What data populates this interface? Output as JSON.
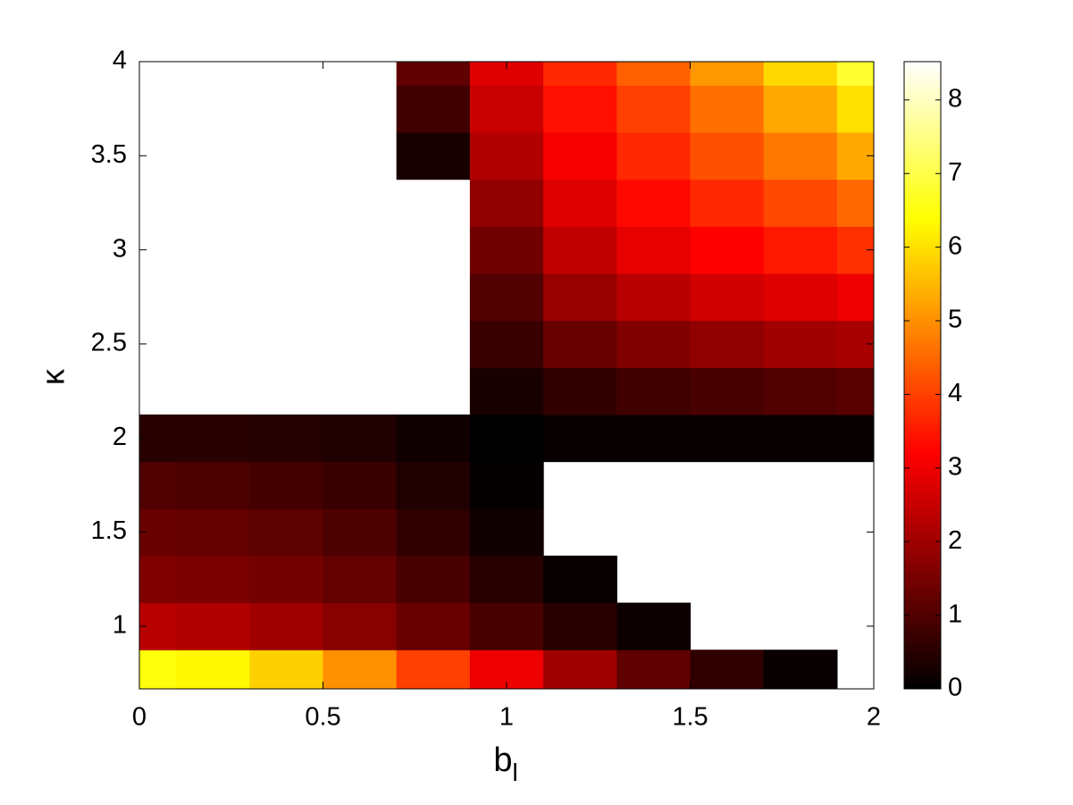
{
  "chart_data": {
    "type": "heatmap",
    "xlabel": "b",
    "xlabel_subscript": "l",
    "ylabel": "κ",
    "x": [
      0,
      0.2,
      0.4,
      0.6,
      0.8,
      1.0,
      1.2,
      1.4,
      1.6,
      1.8,
      2.0
    ],
    "y": [
      0.75,
      1.0,
      1.25,
      1.5,
      1.75,
      2.0,
      2.25,
      2.5,
      2.75,
      3.0,
      3.25,
      3.5,
      3.75,
      4.0
    ],
    "z": [
      [
        6.5,
        6.3,
        5.8,
        5.0,
        4.0,
        3.0,
        2.0,
        1.2,
        0.6,
        0.1,
        null
      ],
      [
        2.3,
        2.2,
        2.0,
        1.7,
        1.3,
        0.9,
        0.5,
        0.15,
        null,
        null,
        null
      ],
      [
        1.6,
        1.55,
        1.45,
        1.25,
        0.9,
        0.5,
        0.1,
        null,
        null,
        null,
        null
      ],
      [
        1.3,
        1.25,
        1.15,
        0.95,
        0.6,
        0.2,
        null,
        null,
        null,
        null,
        null
      ],
      [
        1.0,
        0.95,
        0.85,
        0.7,
        0.4,
        0.05,
        null,
        null,
        null,
        null,
        null
      ],
      [
        0.5,
        0.5,
        0.45,
        0.4,
        0.2,
        0,
        0.1,
        0.1,
        0.1,
        0.1,
        0.1
      ],
      [
        null,
        null,
        null,
        null,
        null,
        0.3,
        0.6,
        0.8,
        0.9,
        1.0,
        1.1
      ],
      [
        null,
        null,
        null,
        null,
        null,
        0.7,
        1.3,
        1.6,
        1.8,
        2.0,
        2.1
      ],
      [
        null,
        null,
        null,
        null,
        null,
        1.0,
        1.9,
        2.3,
        2.6,
        2.8,
        3.0
      ],
      [
        null,
        null,
        null,
        null,
        null,
        1.4,
        2.4,
        2.9,
        3.2,
        3.5,
        3.8
      ],
      [
        null,
        null,
        null,
        null,
        null,
        1.8,
        2.8,
        3.3,
        3.7,
        4.1,
        4.5
      ],
      [
        null,
        null,
        null,
        null,
        0.3,
        2.2,
        3.1,
        3.7,
        4.2,
        4.7,
        5.3
      ],
      [
        null,
        null,
        null,
        null,
        0.8,
        2.5,
        3.4,
        4.0,
        4.6,
        5.3,
        6.0
      ],
      [
        null,
        null,
        null,
        null,
        1.2,
        2.8,
        3.7,
        4.4,
        5.1,
        5.9,
        6.8
      ]
    ],
    "xlim": [
      0,
      2
    ],
    "xticks": [
      0,
      0.5,
      1,
      1.5,
      2
    ],
    "ylim": [
      0.667,
      4
    ],
    "yticks": [
      1,
      1.5,
      2,
      2.5,
      3,
      3.5,
      4
    ],
    "colormap": "hot",
    "clim": [
      0,
      8.52
    ],
    "cticks": [
      0,
      1,
      2,
      3,
      4,
      5,
      6,
      7,
      8
    ]
  }
}
